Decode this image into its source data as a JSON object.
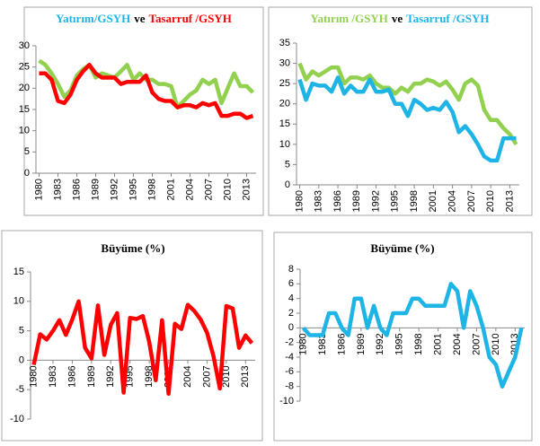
{
  "chart_data": [
    {
      "type": "line",
      "title_parts": [
        {
          "text": "Yatırım/GSYH",
          "color": "#1fb4e6"
        },
        {
          "text": "ve",
          "color": "#000000"
        },
        {
          "text": "Tasarruf /GSYH",
          "color": "#ff0000"
        }
      ],
      "x": [
        1980,
        1981,
        1982,
        1983,
        1984,
        1985,
        1986,
        1987,
        1988,
        1989,
        1990,
        1991,
        1992,
        1993,
        1994,
        1995,
        1996,
        1997,
        1998,
        1999,
        2000,
        2001,
        2002,
        2003,
        2004,
        2005,
        2006,
        2007,
        2008,
        2009,
        2010,
        2011,
        2012,
        2013,
        2014
      ],
      "xlim": [
        1979.5,
        2014.5
      ],
      "xticks": [
        1980,
        1983,
        1986,
        1989,
        1992,
        1995,
        1998,
        2001,
        2004,
        2007,
        2010,
        2013
      ],
      "ylim": [
        0,
        30
      ],
      "yticks": [
        0,
        5,
        10,
        15,
        20,
        25,
        30
      ],
      "series": [
        {
          "color": "#92d050",
          "values": [
            26.5,
            25.5,
            23.5,
            21,
            18,
            19.5,
            23,
            24.5,
            25.5,
            22.5,
            23.5,
            23,
            22.5,
            24,
            25.5,
            22,
            23.5,
            22,
            22,
            21,
            21,
            20.5,
            15.5,
            17,
            18.5,
            19.5,
            22,
            21,
            22,
            16.5,
            20,
            23.5,
            20.5,
            20.5,
            19
          ]
        },
        {
          "color": "#ff0000",
          "values": [
            23.5,
            23.5,
            22,
            17,
            16.5,
            18.5,
            22,
            24,
            25.5,
            23.5,
            22.5,
            22.5,
            22.5,
            21,
            21.5,
            21.5,
            21.5,
            23,
            19,
            17.5,
            17,
            17,
            15.5,
            16,
            16,
            15.5,
            16.5,
            16,
            16.5,
            13.5,
            13.5,
            14,
            14,
            13,
            13.5
          ]
        }
      ]
    },
    {
      "type": "line",
      "title_parts": [
        {
          "text": "Yatırım /GSYH",
          "color": "#92d050"
        },
        {
          "text": "ve",
          "color": "#000000"
        },
        {
          "text": "Tasarruf /GSYH",
          "color": "#1fb4e6"
        }
      ],
      "x": [
        1980,
        1981,
        1982,
        1983,
        1984,
        1985,
        1986,
        1987,
        1988,
        1989,
        1990,
        1991,
        1992,
        1993,
        1994,
        1995,
        1996,
        1997,
        1998,
        1999,
        2000,
        2001,
        2002,
        2003,
        2004,
        2005,
        2006,
        2007,
        2008,
        2009,
        2010,
        2011,
        2012,
        2013,
        2014
      ],
      "xlim": [
        1979.5,
        2014.5
      ],
      "xticks": [
        1980,
        1983,
        1986,
        1989,
        1992,
        1995,
        1998,
        2001,
        2004,
        2007,
        2010,
        2013
      ],
      "ylim": [
        0,
        35
      ],
      "yticks": [
        0,
        5,
        10,
        15,
        20,
        25,
        30,
        35
      ],
      "series": [
        {
          "color": "#92d050",
          "values": [
            30,
            26,
            28,
            27,
            28,
            29,
            29,
            25,
            26.5,
            26.5,
            26,
            27,
            25,
            24,
            24,
            22.5,
            24,
            23,
            25,
            25,
            26,
            25.5,
            24.5,
            25.5,
            23.5,
            21,
            25,
            26,
            24.5,
            18.5,
            16,
            16,
            14,
            12.5,
            10
          ]
        },
        {
          "color": "#1fb4e6",
          "values": [
            26,
            21,
            25,
            24.5,
            24.5,
            23,
            26.5,
            22.5,
            24.5,
            23,
            23,
            26,
            23,
            23,
            23.5,
            20,
            20,
            17,
            21,
            20,
            18.5,
            19,
            18.5,
            20.5,
            18,
            13,
            14.5,
            12.5,
            10,
            7,
            6,
            6,
            11.5,
            11.5,
            11.5
          ]
        }
      ]
    },
    {
      "type": "line",
      "title": "Büyüme (%)",
      "x": [
        1980,
        1981,
        1982,
        1983,
        1984,
        1985,
        1986,
        1987,
        1988,
        1989,
        1990,
        1991,
        1992,
        1993,
        1994,
        1995,
        1996,
        1997,
        1998,
        1999,
        2000,
        2001,
        2002,
        2003,
        2004,
        2005,
        2006,
        2007,
        2008,
        2009,
        2010,
        2011,
        2012,
        2013,
        2014
      ],
      "xlim": [
        1979.5,
        2014.5
      ],
      "xticks": [
        1980,
        1983,
        1986,
        1989,
        1992,
        1995,
        1998,
        2001,
        2004,
        2007,
        2010,
        2013
      ],
      "ylim": [
        -10,
        15
      ],
      "yticks": [
        -10,
        -5,
        0,
        5,
        10,
        15
      ],
      "series": [
        {
          "color": "#ff0000",
          "values": [
            -0.8,
            4.4,
            3.5,
            5,
            6.8,
            4.3,
            6.9,
            10,
            2.1,
            0.3,
            9.3,
            0.9,
            6,
            8,
            -5.5,
            7.2,
            7,
            7.5,
            3.1,
            -3.4,
            6.8,
            -5.7,
            6.2,
            5.3,
            9.4,
            8.4,
            6.9,
            4.7,
            0.7,
            -4.8,
            9.2,
            8.8,
            2.1,
            4.2,
            2.9
          ]
        }
      ]
    },
    {
      "type": "line",
      "title": "Büyüme (%)",
      "x": [
        1980,
        1981,
        1982,
        1983,
        1984,
        1985,
        1986,
        1987,
        1988,
        1989,
        1990,
        1991,
        1992,
        1993,
        1994,
        1995,
        1996,
        1997,
        1998,
        1999,
        2000,
        2001,
        2002,
        2003,
        2004,
        2005,
        2006,
        2007,
        2008,
        2009,
        2010,
        2011,
        2012,
        2013,
        2014
      ],
      "xlim": [
        1979.5,
        2014.5
      ],
      "xticks": [
        1980,
        1983,
        1986,
        1989,
        1992,
        1995,
        1998,
        2001,
        2004,
        2007,
        2010,
        2013
      ],
      "ylim": [
        -10,
        8
      ],
      "yticks": [
        -10,
        -8,
        -6,
        -4,
        -2,
        0,
        2,
        4,
        6,
        8
      ],
      "series": [
        {
          "color": "#1fb4e6",
          "values": [
            0,
            -1,
            -1,
            -1,
            2,
            2,
            0,
            -1,
            4,
            4,
            0,
            3,
            0,
            -1,
            2,
            2,
            2,
            4,
            4,
            3,
            3,
            3,
            3,
            6,
            5,
            0,
            5,
            3,
            0,
            -4,
            -5,
            -8,
            -6,
            -4,
            0
          ]
        }
      ]
    }
  ]
}
